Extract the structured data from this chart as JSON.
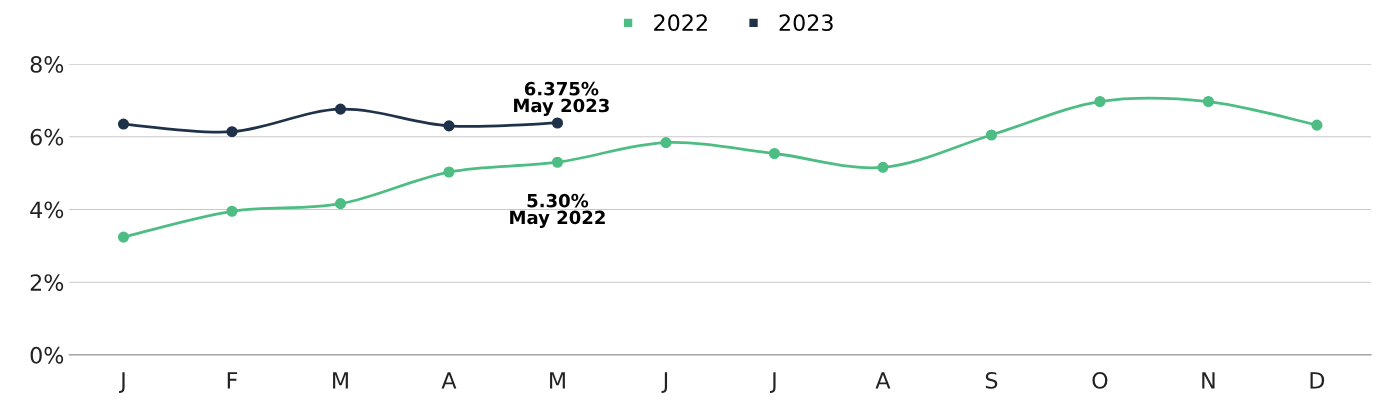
{
  "chart_data": {
    "type": "line",
    "categories": [
      "J",
      "F",
      "M",
      "A",
      "M",
      "J",
      "J",
      "A",
      "S",
      "O",
      "N",
      "D"
    ],
    "series": [
      {
        "name": "2022",
        "color": "#4dbd84",
        "values": [
          3.24,
          3.95,
          4.16,
          5.03,
          5.3,
          5.84,
          5.54,
          5.16,
          6.05,
          6.97,
          6.97,
          6.32
        ]
      },
      {
        "name": "2023",
        "color": "#1f3249",
        "values": [
          6.35,
          6.14,
          6.76,
          6.3,
          6.38,
          null,
          null,
          null,
          null,
          null,
          null,
          null
        ]
      }
    ],
    "ylim": [
      0,
      8
    ],
    "yticks": [
      {
        "value": 0,
        "label": "0%"
      },
      {
        "value": 2,
        "label": "2%"
      },
      {
        "value": 4,
        "label": "4%"
      },
      {
        "value": 6,
        "label": "6%"
      },
      {
        "value": 8,
        "label": "8%"
      }
    ],
    "grid": "y",
    "legend": "top",
    "marker": "circle",
    "line_style": "solid",
    "annotations": [
      "6.375%\nMay 2023",
      "5.30%\nMay 2022"
    ]
  }
}
